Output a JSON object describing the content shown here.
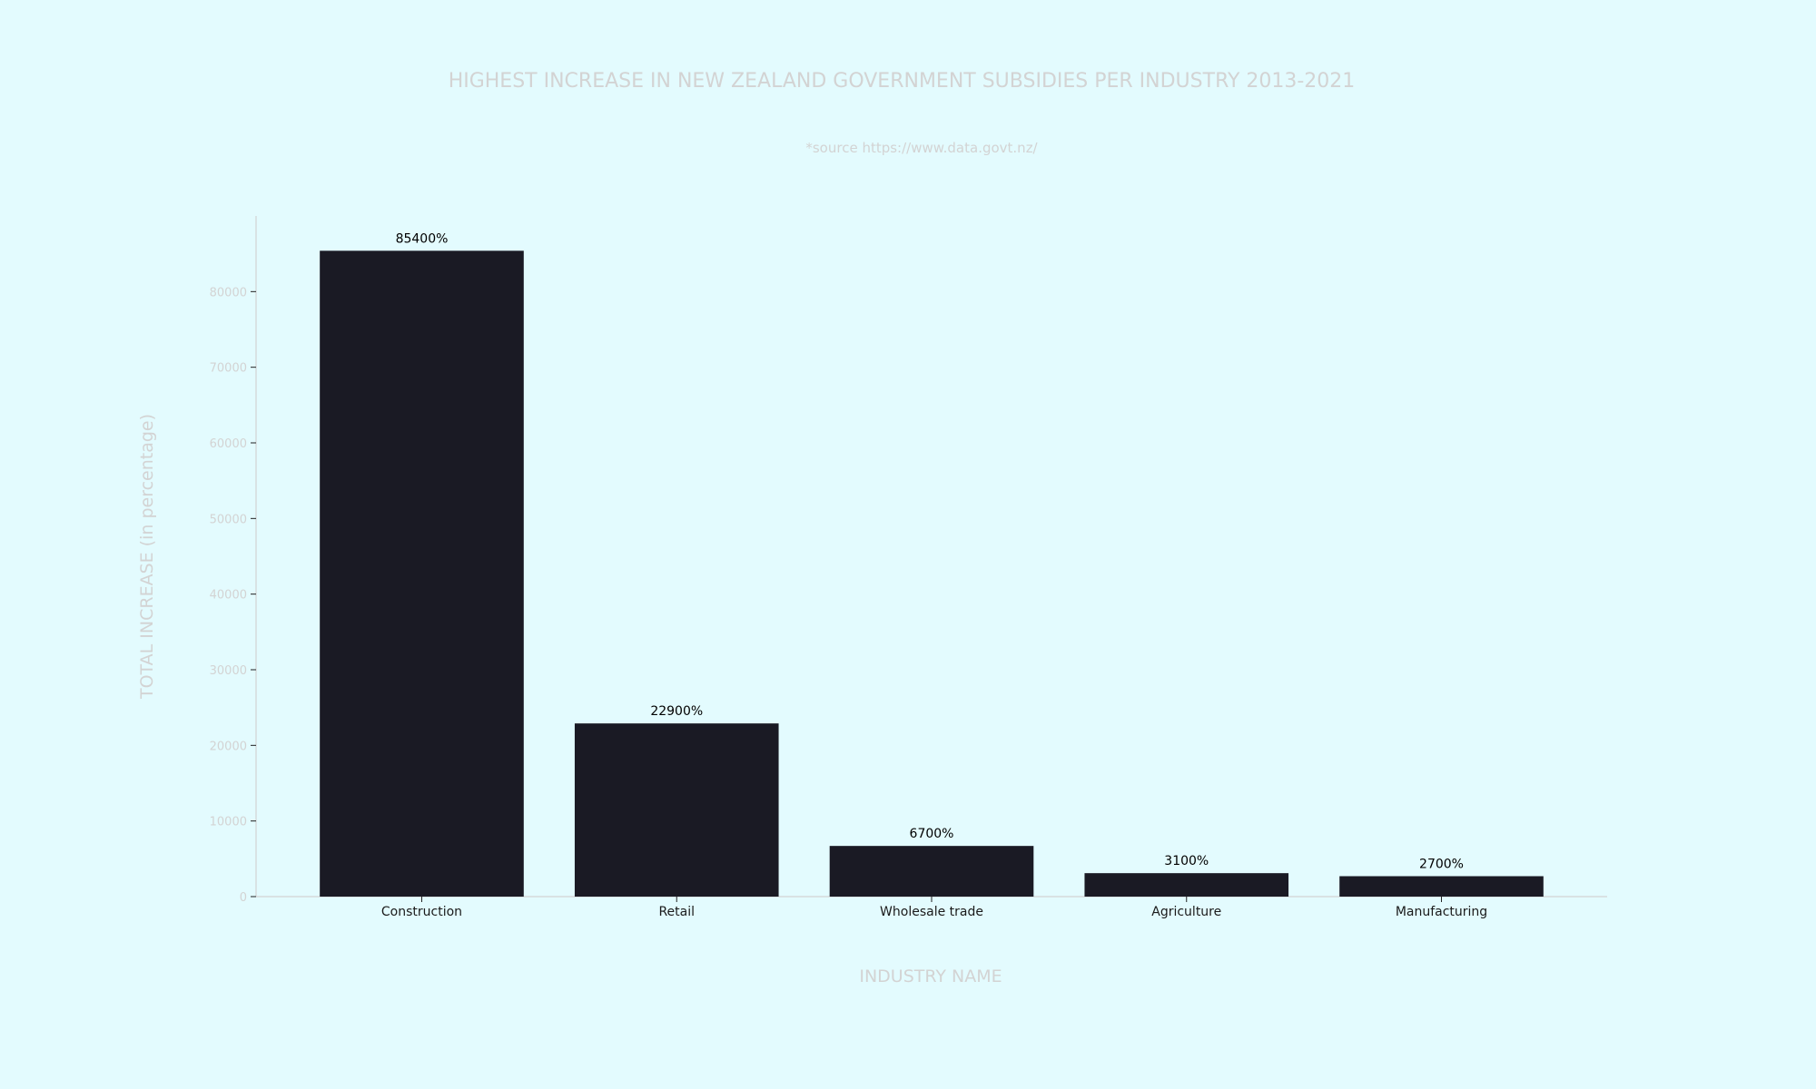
{
  "colors": {
    "background": "#e3fbfe",
    "bar": "#1a1a24",
    "axis_text": "#d3d3d3",
    "axis_line": "#d3d3d3",
    "tick_label": "#1a1a1a",
    "data_label": "#000000"
  },
  "chart_data": {
    "type": "bar",
    "title": "HIGHEST INCREASE IN NEW ZEALAND GOVERNMENT SUBSIDIES PER INDUSTRY 2013-2021",
    "subtitle": "*source https://www.data.govt.nz/",
    "xlabel": "INDUSTRY NAME",
    "ylabel": "TOTAL INCREASE (in percentage)",
    "categories": [
      "Construction",
      "Retail",
      "Wholesale trade",
      "Agriculture",
      "Manufacturing"
    ],
    "values": [
      85400,
      22900,
      6700,
      3100,
      2700
    ],
    "data_labels": [
      "85400%",
      "22900%",
      "6700%",
      "3100%",
      "2700%"
    ],
    "ylim": [
      0,
      90000
    ],
    "yticks": [
      0,
      10000,
      20000,
      30000,
      40000,
      50000,
      60000,
      70000,
      80000
    ],
    "grid": false,
    "legend": "none"
  }
}
